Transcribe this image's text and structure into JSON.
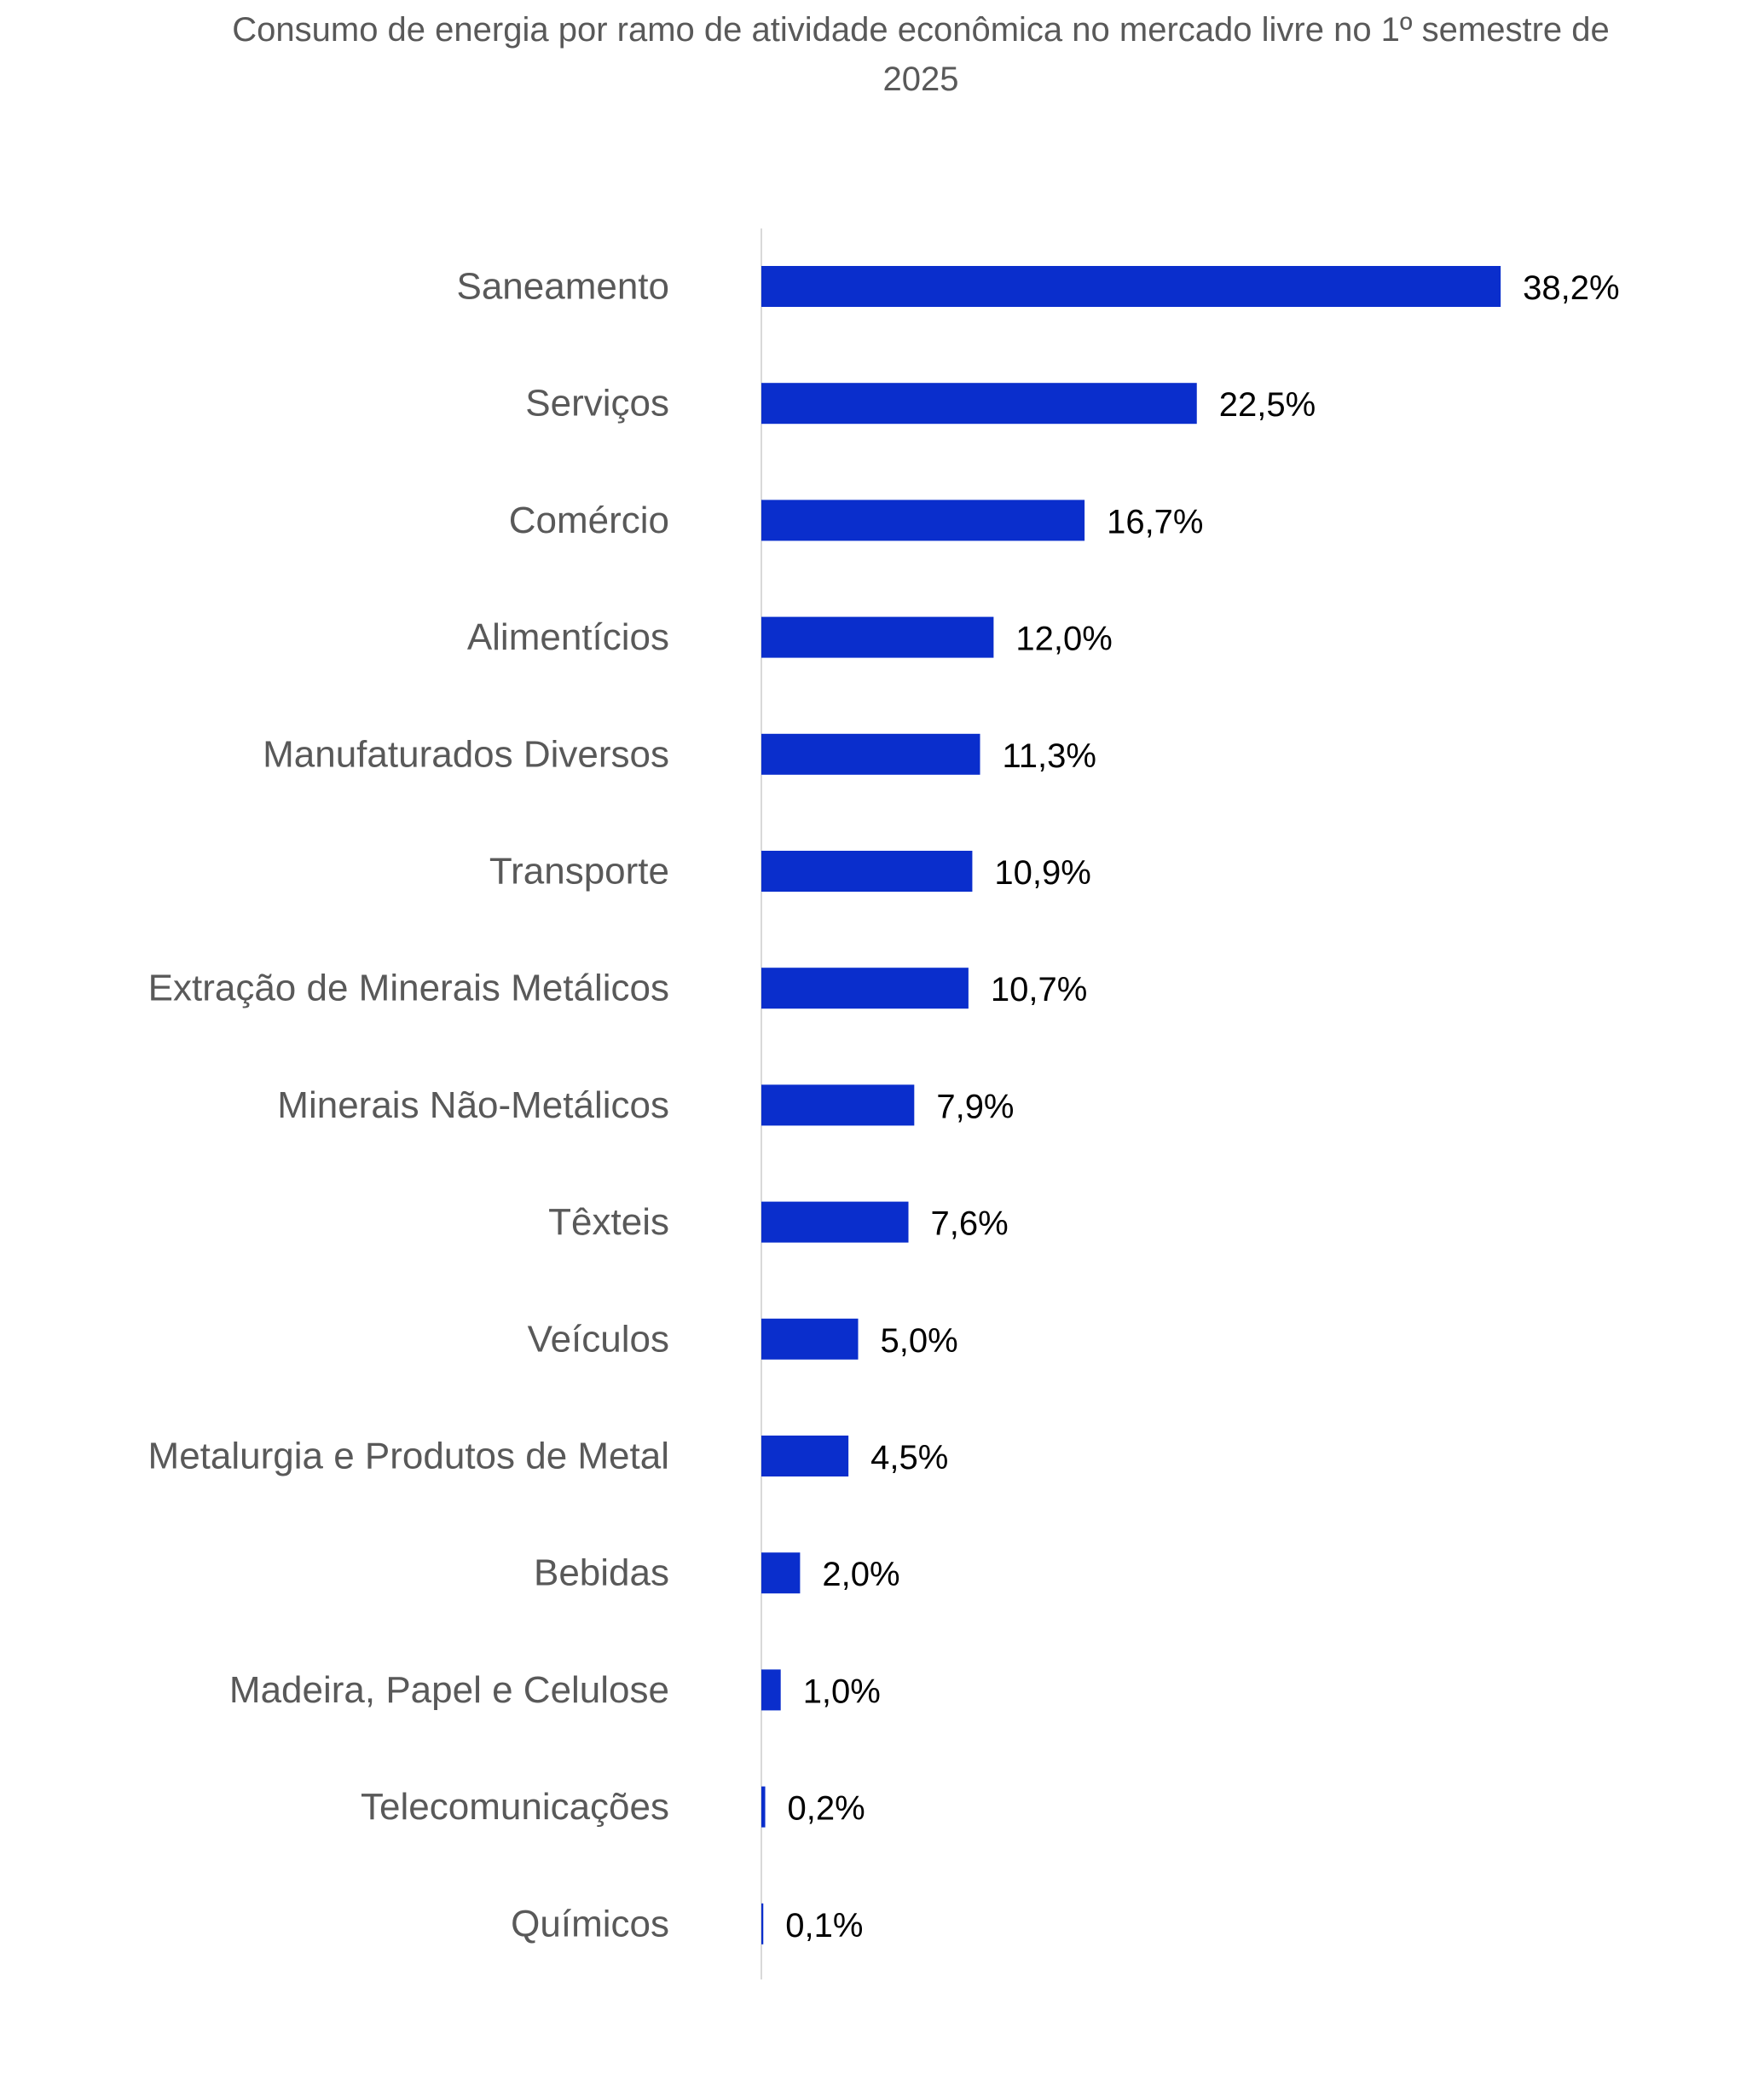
{
  "chart_data": {
    "type": "bar",
    "orientation": "horizontal",
    "title": "Consumo de energia por ramo de atividade econômica no mercado livre no 1º semestre de 2025",
    "xlabel": "",
    "ylabel": "",
    "grid": false,
    "legend": "none",
    "xlim": [
      0,
      45
    ],
    "bar_color": "#0a2ecc",
    "axis_color": "#d9d9d9",
    "categories": [
      "Saneamento",
      "Serviços",
      "Comércio",
      "Alimentícios",
      "Manufaturados Diversos",
      "Transporte",
      "Extração de Minerais Metálicos",
      "Minerais Não-Metálicos",
      "Têxteis",
      "Veículos",
      "Metalurgia e Produtos de Metal",
      "Bebidas",
      "Madeira, Papel e Celulose",
      "Telecomunicações",
      "Químicos"
    ],
    "values": [
      38.2,
      22.5,
      16.7,
      12.0,
      11.3,
      10.9,
      10.7,
      7.9,
      7.6,
      5.0,
      4.5,
      2.0,
      1.0,
      0.2,
      0.1
    ],
    "data_labels": [
      "38,2%",
      "22,5%",
      "16,7%",
      "12,0%",
      "11,3%",
      "10,9%",
      "10,7%",
      "7,9%",
      "7,6%",
      "5,0%",
      "4,5%",
      "2,0%",
      "1,0%",
      "0,2%",
      "0,1%"
    ]
  }
}
